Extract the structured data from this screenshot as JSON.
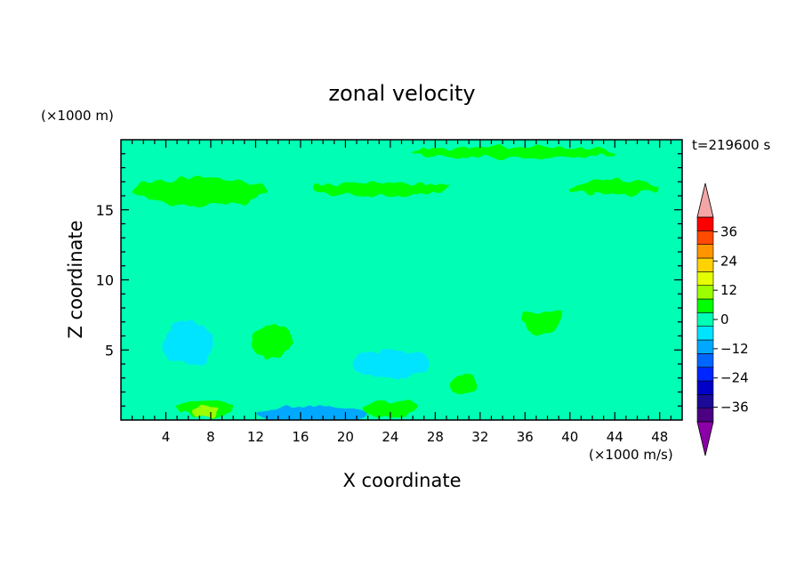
{
  "chart_data": {
    "type": "heatmap",
    "title": "zonal velocity",
    "time_label": "t=219600 s",
    "xlabel": "X coordinate",
    "ylabel": "Z coordinate",
    "x_unit": "(×1000 m/s)",
    "y_unit": "(×1000 m)",
    "xlim": [
      0,
      50
    ],
    "ylim": [
      0,
      20
    ],
    "x_ticks": [
      4,
      8,
      12,
      16,
      20,
      24,
      28,
      32,
      36,
      40,
      44,
      48
    ],
    "y_ticks": [
      5,
      10,
      15
    ],
    "colorbar": {
      "tick_labels": [
        "36",
        "24",
        "12",
        "0",
        "−12",
        "−24",
        "−36"
      ],
      "tick_values": [
        36,
        24,
        12,
        0,
        -12,
        -24,
        -36
      ],
      "levels": [
        -42,
        -36,
        -30,
        -24,
        -18,
        -12,
        -6,
        0,
        6,
        12,
        18,
        24,
        30,
        36,
        42
      ],
      "colors": [
        "#4b0082",
        "#1a0a96",
        "#0000c8",
        "#0026ff",
        "#0066ff",
        "#00a8ff",
        "#00e4ff",
        "#00ffb4",
        "#00ff00",
        "#9cff00",
        "#e6ff00",
        "#ffd200",
        "#ff9600",
        "#ff4a00",
        "#ff0000"
      ],
      "over_color": "#f4a6a6",
      "under_color": "#8b00a8"
    },
    "background_color": "#00ffb4",
    "features": [
      {
        "name": "lower-left band",
        "cx": 3.5,
        "cz": 1.7,
        "rx": 5.5,
        "rz": 0.9,
        "value": 3
      },
      {
        "name": "bottom-left peak",
        "cx": 7.5,
        "cz": 0.8,
        "rx": 2.5,
        "rz": 0.6,
        "value": 9
      },
      {
        "name": "bottom-left core",
        "cx": 7.5,
        "cz": 0.6,
        "rx": 1.2,
        "rz": 0.4,
        "value": 15
      },
      {
        "name": "mid-left blob",
        "cx": 13.5,
        "cz": 6.0,
        "rx": 3.3,
        "rz": 2.5,
        "value": 4
      },
      {
        "name": "mid-left blob core",
        "cx": 13.5,
        "cz": 5.6,
        "rx": 1.8,
        "rz": 1.2,
        "value": 10
      },
      {
        "name": "bottom-center band",
        "cx": 23.5,
        "cz": 1.0,
        "rx": 7.0,
        "rz": 1.0,
        "value": 4
      },
      {
        "name": "bottom-center core",
        "cx": 24.0,
        "cz": 0.8,
        "rx": 2.5,
        "rz": 0.6,
        "value": 10
      },
      {
        "name": "lower-center blob",
        "cx": 30.5,
        "cz": 2.6,
        "rx": 2.3,
        "rz": 1.4,
        "value": 4
      },
      {
        "name": "lower-center core",
        "cx": 30.5,
        "cz": 2.6,
        "rx": 1.2,
        "rz": 0.7,
        "value": 10
      },
      {
        "name": "right blob",
        "cx": 38.0,
        "cz": 7.0,
        "rx": 3.5,
        "rz": 2.8,
        "value": 5
      },
      {
        "name": "right blob core",
        "cx": 37.5,
        "cz": 7.5,
        "rx": 1.8,
        "rz": 1.4,
        "value": 10
      },
      {
        "name": "right lower lobe",
        "cx": 39.5,
        "cz": 4.5,
        "rx": 2.5,
        "rz": 1.3,
        "value": 5
      },
      {
        "name": "far-right spot",
        "cx": 45.0,
        "cz": 4.3,
        "rx": 2.5,
        "rz": 0.9,
        "value": 4
      },
      {
        "name": "lower-right patch",
        "cx": 47.0,
        "cz": 2.5,
        "rx": 3.0,
        "rz": 1.0,
        "value": 2
      },
      {
        "name": "middle band",
        "cx": 25.0,
        "cz": 9.2,
        "rx": 27.0,
        "rz": 1.7,
        "value": 2
      },
      {
        "name": "upper band",
        "cx": 25.0,
        "cz": 16.0,
        "rx": 27.0,
        "rz": 1.6,
        "value": 4
      },
      {
        "name": "upper band left core",
        "cx": 7.0,
        "cz": 16.3,
        "rx": 6.0,
        "rz": 1.0,
        "value": 10
      },
      {
        "name": "upper band mid core",
        "cx": 23.0,
        "cz": 16.5,
        "rx": 6.0,
        "rz": 0.5,
        "value": 8
      },
      {
        "name": "upper band right core",
        "cx": 44.0,
        "cz": 16.6,
        "rx": 4.0,
        "rz": 0.5,
        "value": 8
      },
      {
        "name": "top band",
        "cx": 25.0,
        "cz": 19.0,
        "rx": 27.0,
        "rz": 0.8,
        "value": 3
      },
      {
        "name": "top band core",
        "cx": 35.0,
        "cz": 19.1,
        "rx": 9.0,
        "rz": 0.4,
        "value": 7
      },
      {
        "name": "bottom cyan spot",
        "cx": 17.0,
        "cz": 0.4,
        "rx": 5.0,
        "rz": 0.6,
        "value": -10
      },
      {
        "name": "left cyan patch",
        "cx": 6.0,
        "cz": 5.5,
        "rx": 2.2,
        "rz": 1.6,
        "value": -5
      },
      {
        "name": "center cyan patch",
        "cx": 24.0,
        "cz": 4.0,
        "rx": 3.5,
        "rz": 1.0,
        "value": -5
      }
    ]
  }
}
